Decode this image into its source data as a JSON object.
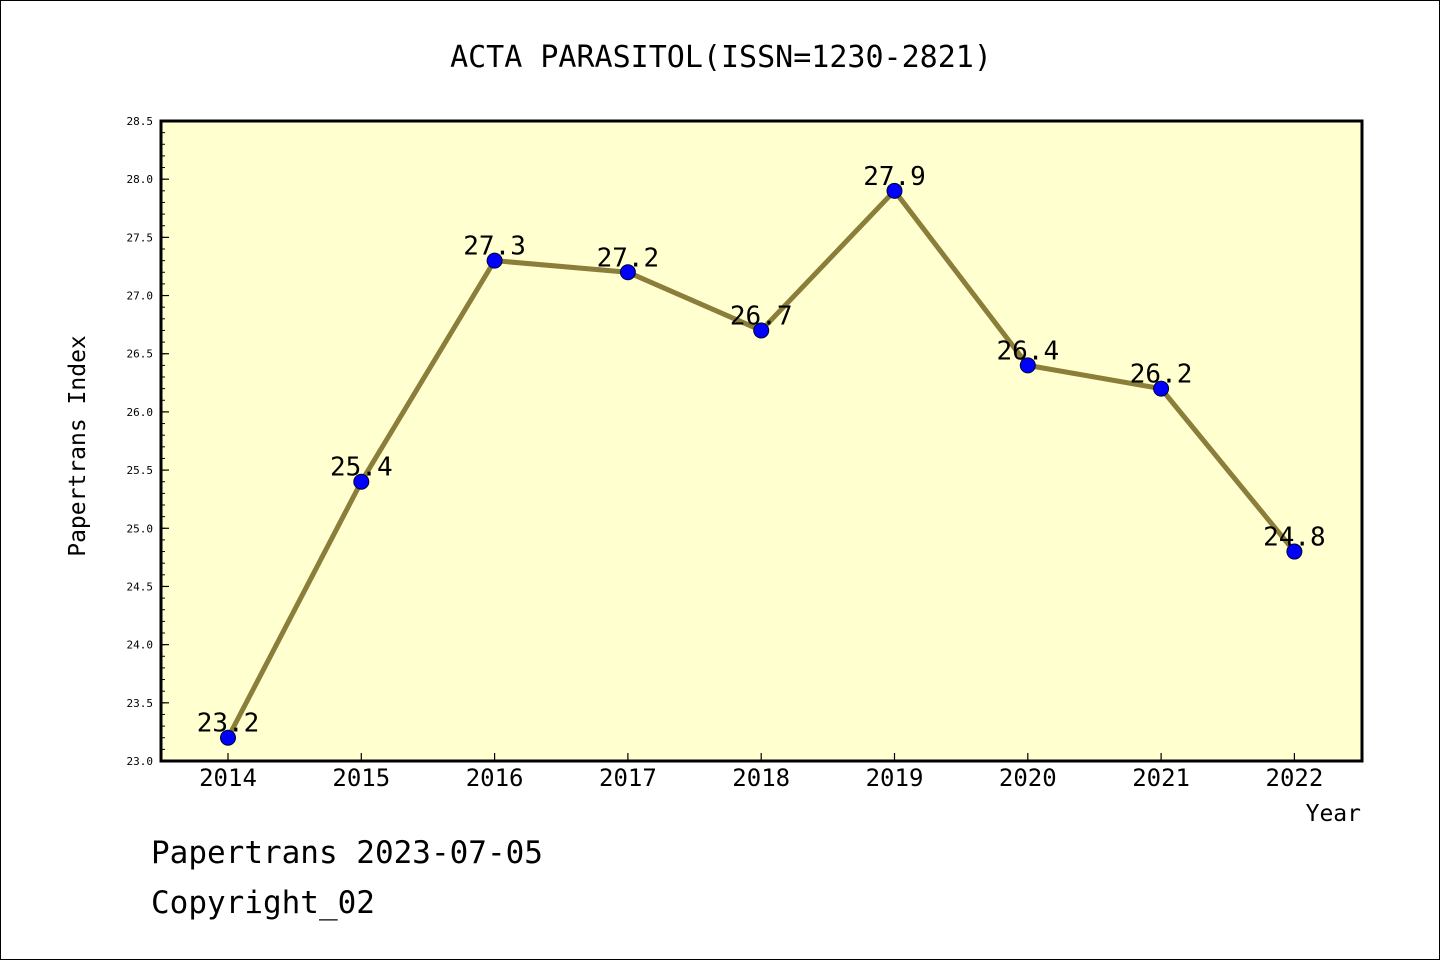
{
  "chart_data": {
    "type": "line",
    "title": "ACTA PARASITOL(ISSN=1230-2821)",
    "xlabel": "Year",
    "ylabel": "Papertrans Index",
    "categories": [
      "2014",
      "2015",
      "2016",
      "2017",
      "2018",
      "2019",
      "2020",
      "2021",
      "2022"
    ],
    "values": [
      23.2,
      25.4,
      27.3,
      27.2,
      26.7,
      27.9,
      26.4,
      26.2,
      24.8
    ],
    "data_labels": [
      "23.2",
      "25.4",
      "27.3",
      "27.2",
      "26.7",
      "27.9",
      "26.4",
      "26.2",
      "24.8"
    ],
    "ylim": [
      23.0,
      28.5
    ],
    "yticks": [
      "23.0",
      "23.5",
      "24.0",
      "24.5",
      "25.0",
      "25.5",
      "26.0",
      "26.5",
      "27.0",
      "27.5",
      "28.0",
      "28.5"
    ],
    "grid": false,
    "colors": {
      "line": "#8b7d3a",
      "marker": "#0000ff",
      "plot_background": "#ffffd0"
    }
  },
  "footer": {
    "line1": "Papertrans 2023-07-05",
    "line2": "Copyright_02"
  }
}
